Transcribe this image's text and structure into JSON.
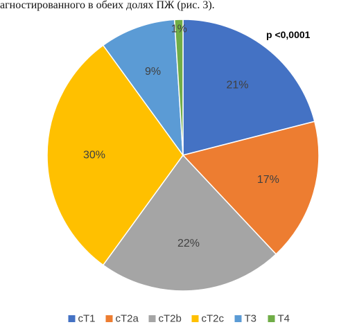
{
  "caption": "агностированного в обеих долях ПЖ (рис. 3).",
  "chart_data": {
    "type": "pie",
    "title": "",
    "annotation": "p <0,0001",
    "start": "12 o'clock",
    "direction": "clockwise",
    "legend_position": "bottom",
    "slices": [
      {
        "label": "cT1",
        "value": 21,
        "display": "21%",
        "color": "#4472C4"
      },
      {
        "label": "cT2a",
        "value": 17,
        "display": "17%",
        "color": "#ED7D31"
      },
      {
        "label": "cT2b",
        "value": 22,
        "display": "22%",
        "color": "#A5A5A5"
      },
      {
        "label": "cT2c",
        "value": 30,
        "display": "30%",
        "color": "#FFC000"
      },
      {
        "label": "T3",
        "value": 9,
        "display": "9%",
        "color": "#5B9BD5"
      },
      {
        "label": "T4",
        "value": 1,
        "display": "1%",
        "color": "#70AD47"
      }
    ]
  }
}
